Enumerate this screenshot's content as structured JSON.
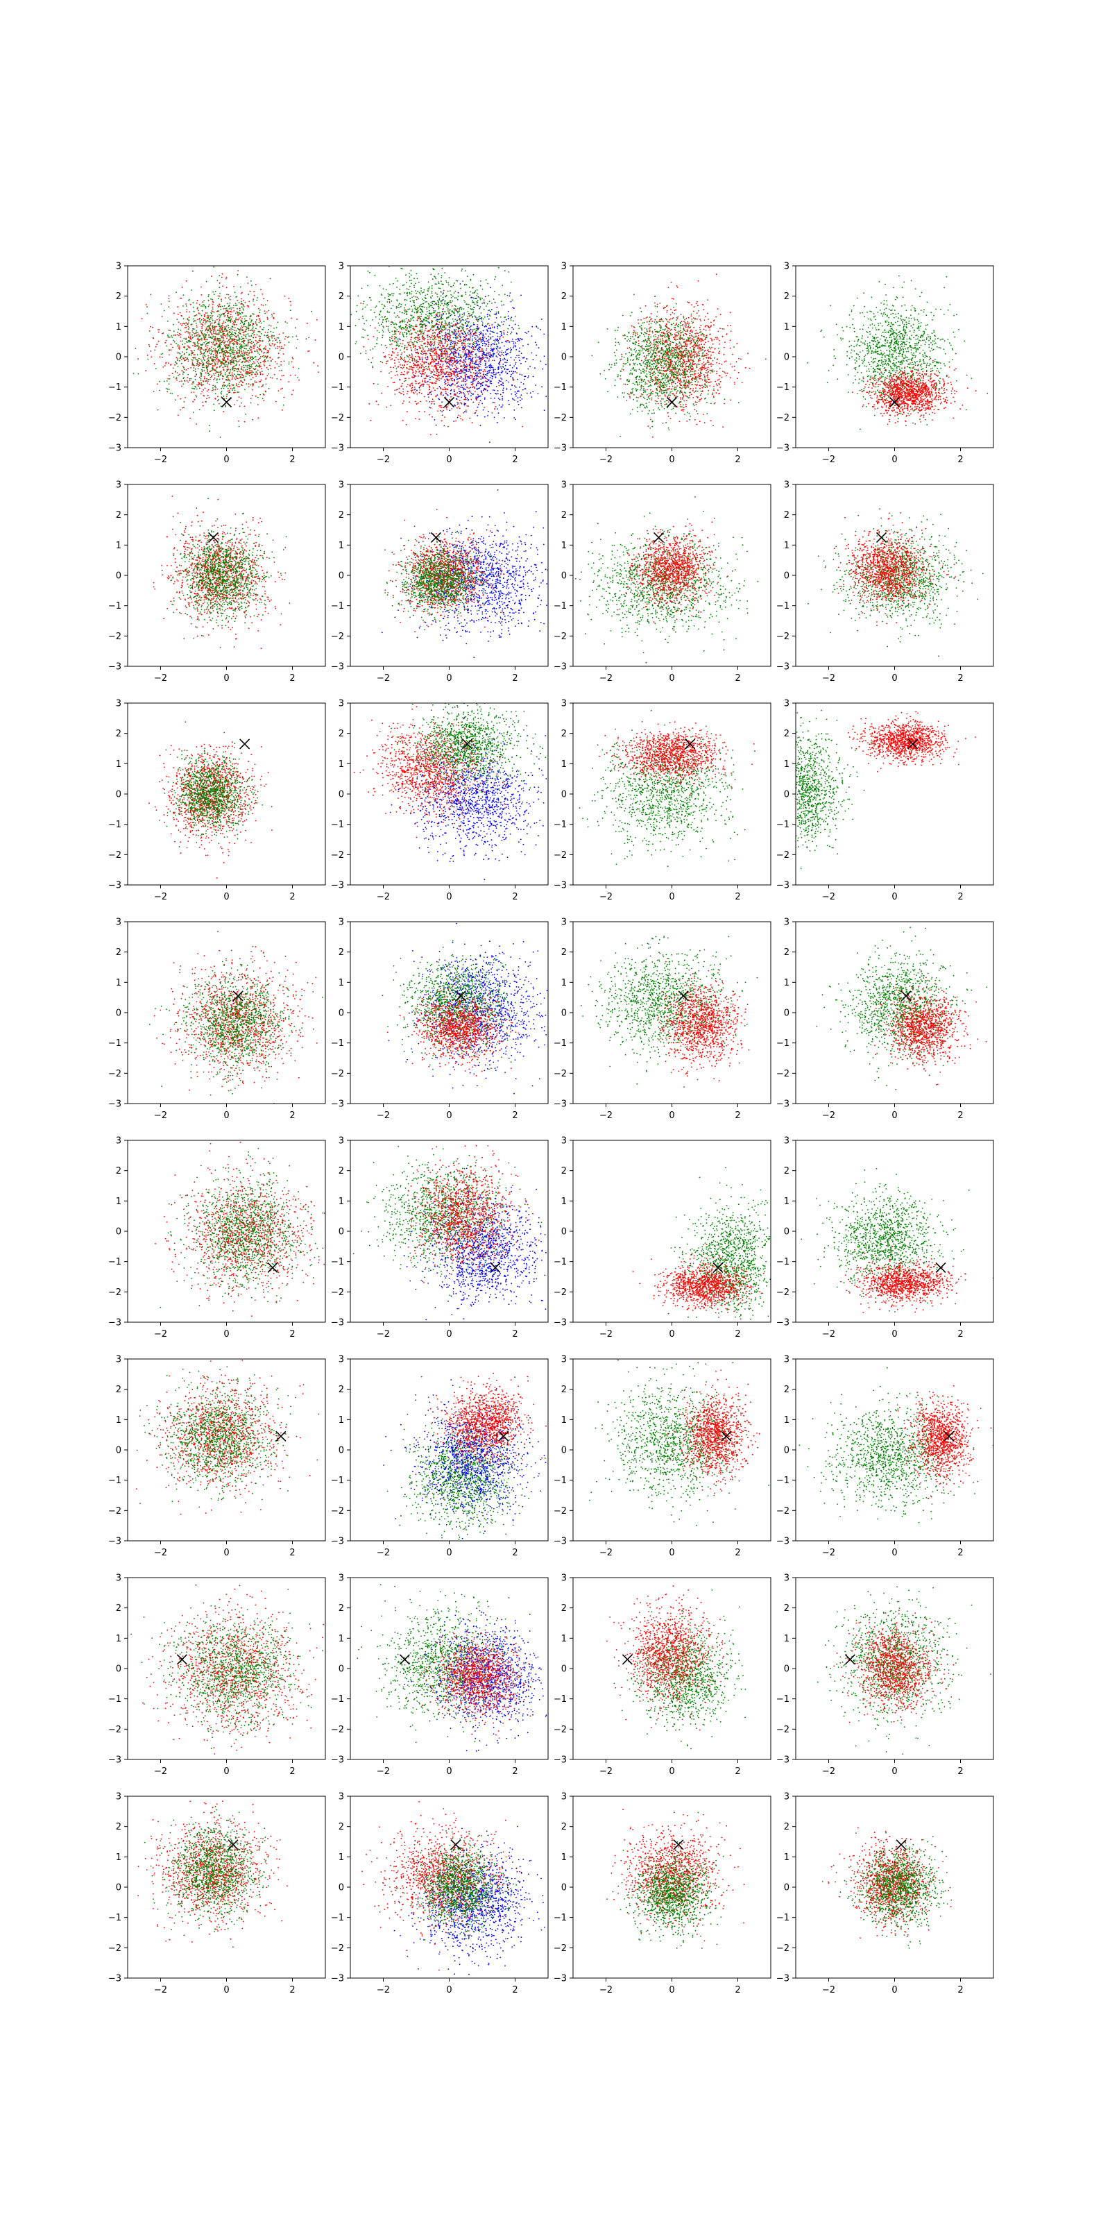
{
  "chart_data": {
    "type": "scatter",
    "grid": false,
    "rows": 8,
    "cols": 4,
    "xlim": [
      -3,
      3
    ],
    "ylim": [
      -3,
      3
    ],
    "x_ticks": [
      -2,
      0,
      2
    ],
    "y_ticks": [
      -3,
      -2,
      -1,
      0,
      1,
      2,
      3
    ],
    "x_tick_labels": [
      "−2",
      "0",
      "2"
    ],
    "y_tick_labels": [
      "−3",
      "−2",
      "−1",
      "0",
      "1",
      "2",
      "3"
    ],
    "colors": {
      "red": "#ff0000",
      "green": "#008000",
      "blue": "#0000ff",
      "marker": "#000000"
    },
    "points_per_cloud": 1100,
    "x_markers": [
      [
        0.0,
        -1.5
      ],
      [
        -0.4,
        1.25
      ],
      [
        0.55,
        1.65
      ],
      [
        0.35,
        0.55
      ],
      [
        1.4,
        -1.2
      ],
      [
        1.65,
        0.45
      ],
      [
        -1.35,
        0.3
      ],
      [
        0.2,
        1.4
      ]
    ],
    "panels": [
      [
        {
          "clouds": [
            {
              "color": "red",
              "cx": 0.0,
              "cy": 0.3,
              "sx": 0.95,
              "sy": 0.9
            },
            {
              "color": "green",
              "cx": -0.1,
              "cy": 0.3,
              "sx": 0.85,
              "sy": 0.85
            }
          ]
        },
        {
          "clouds": [
            {
              "color": "green",
              "cx": -0.5,
              "cy": 1.3,
              "sx": 1.0,
              "sy": 0.75
            },
            {
              "color": "blue",
              "cx": 0.9,
              "cy": -0.1,
              "sx": 0.85,
              "sy": 0.8
            },
            {
              "color": "red",
              "cx": -0.3,
              "cy": -0.2,
              "sx": 0.8,
              "sy": 0.8
            }
          ]
        },
        {
          "clouds": [
            {
              "color": "red",
              "cx": 0.3,
              "cy": -0.1,
              "sx": 0.7,
              "sy": 0.8
            },
            {
              "color": "green",
              "cx": -0.3,
              "cy": -0.2,
              "sx": 0.7,
              "sy": 0.75
            }
          ]
        },
        {
          "clouds": [
            {
              "color": "green",
              "cx": 0.0,
              "cy": 0.1,
              "sx": 0.75,
              "sy": 0.85
            },
            {
              "color": "red",
              "cx": 0.4,
              "cy": -1.2,
              "sx": 0.55,
              "sy": 0.35
            }
          ]
        }
      ],
      [
        {
          "clouds": [
            {
              "color": "red",
              "cx": -0.2,
              "cy": 0.0,
              "sx": 0.7,
              "sy": 0.75
            },
            {
              "color": "green",
              "cx": -0.15,
              "cy": 0.0,
              "sx": 0.6,
              "sy": 0.65
            }
          ]
        },
        {
          "clouds": [
            {
              "color": "blue",
              "cx": 1.0,
              "cy": -0.2,
              "sx": 0.9,
              "sy": 0.8
            },
            {
              "color": "red",
              "cx": -0.2,
              "cy": 0.0,
              "sx": 0.6,
              "sy": 0.6
            },
            {
              "color": "green",
              "cx": -0.3,
              "cy": -0.2,
              "sx": 0.55,
              "sy": 0.5
            }
          ]
        },
        {
          "clouds": [
            {
              "color": "green",
              "cx": -0.3,
              "cy": -0.3,
              "sx": 1.0,
              "sy": 0.75
            },
            {
              "color": "red",
              "cx": 0.0,
              "cy": 0.2,
              "sx": 0.55,
              "sy": 0.55
            }
          ]
        },
        {
          "clouds": [
            {
              "color": "green",
              "cx": 0.2,
              "cy": -0.1,
              "sx": 0.8,
              "sy": 0.7
            },
            {
              "color": "red",
              "cx": -0.2,
              "cy": 0.2,
              "sx": 0.55,
              "sy": 0.55
            }
          ]
        }
      ],
      [
        {
          "clouds": [
            {
              "color": "red",
              "cx": -0.5,
              "cy": 0.0,
              "sx": 0.6,
              "sy": 0.7
            },
            {
              "color": "green",
              "cx": -0.5,
              "cy": 0.0,
              "sx": 0.5,
              "sy": 0.55
            }
          ]
        },
        {
          "clouds": [
            {
              "color": "blue",
              "cx": 0.8,
              "cy": -0.2,
              "sx": 0.85,
              "sy": 0.8
            },
            {
              "color": "red",
              "cx": -0.6,
              "cy": 0.8,
              "sx": 0.75,
              "sy": 0.7
            },
            {
              "color": "green",
              "cx": 0.5,
              "cy": 1.6,
              "sx": 0.75,
              "sy": 0.6
            }
          ]
        },
        {
          "clouds": [
            {
              "color": "green",
              "cx": -0.2,
              "cy": 0.1,
              "sx": 0.95,
              "sy": 0.85
            },
            {
              "color": "red",
              "cx": 0.0,
              "cy": 1.3,
              "sx": 0.7,
              "sy": 0.4
            }
          ]
        },
        {
          "clouds": [
            {
              "color": "green",
              "cx": -2.7,
              "cy": 0.1,
              "sx": 0.55,
              "sy": 0.9
            },
            {
              "color": "red",
              "cx": 0.3,
              "cy": 1.75,
              "sx": 0.6,
              "sy": 0.3
            }
          ]
        }
      ],
      [
        {
          "clouds": [
            {
              "color": "red",
              "cx": 0.3,
              "cy": -0.3,
              "sx": 0.85,
              "sy": 0.85
            },
            {
              "color": "green",
              "cx": 0.3,
              "cy": -0.3,
              "sx": 0.75,
              "sy": 0.75
            }
          ]
        },
        {
          "clouds": [
            {
              "color": "blue",
              "cx": 1.0,
              "cy": 0.1,
              "sx": 0.85,
              "sy": 0.85
            },
            {
              "color": "green",
              "cx": 0.2,
              "cy": 0.3,
              "sx": 0.7,
              "sy": 0.7
            },
            {
              "color": "red",
              "cx": 0.3,
              "cy": -0.5,
              "sx": 0.6,
              "sy": 0.5
            }
          ]
        },
        {
          "clouds": [
            {
              "color": "green",
              "cx": -0.3,
              "cy": 0.4,
              "sx": 0.9,
              "sy": 0.8
            },
            {
              "color": "red",
              "cx": 0.9,
              "cy": -0.4,
              "sx": 0.55,
              "sy": 0.6
            }
          ]
        },
        {
          "clouds": [
            {
              "color": "green",
              "cx": 0.1,
              "cy": 0.2,
              "sx": 0.75,
              "sy": 0.8
            },
            {
              "color": "red",
              "cx": 0.9,
              "cy": -0.5,
              "sx": 0.5,
              "sy": 0.55
            }
          ]
        }
      ],
      [
        {
          "clouds": [
            {
              "color": "red",
              "cx": 0.6,
              "cy": -0.1,
              "sx": 0.9,
              "sy": 0.9
            },
            {
              "color": "green",
              "cx": 0.6,
              "cy": 0.0,
              "sx": 0.8,
              "sy": 0.85
            }
          ]
        },
        {
          "clouds": [
            {
              "color": "green",
              "cx": -0.2,
              "cy": 0.6,
              "sx": 0.9,
              "sy": 0.8
            },
            {
              "color": "blue",
              "cx": 1.1,
              "cy": -0.7,
              "sx": 0.8,
              "sy": 0.85
            },
            {
              "color": "red",
              "cx": 0.5,
              "cy": 0.6,
              "sx": 0.65,
              "sy": 0.75
            }
          ]
        },
        {
          "clouds": [
            {
              "color": "green",
              "cx": 1.8,
              "cy": -1.0,
              "sx": 0.6,
              "sy": 0.85
            },
            {
              "color": "red",
              "cx": 1.0,
              "cy": -1.8,
              "sx": 0.6,
              "sy": 0.35
            }
          ]
        },
        {
          "clouds": [
            {
              "color": "green",
              "cx": -0.3,
              "cy": -0.3,
              "sx": 0.75,
              "sy": 0.75
            },
            {
              "color": "red",
              "cx": 0.3,
              "cy": -1.7,
              "sx": 0.65,
              "sy": 0.3
            }
          ]
        }
      ],
      [
        {
          "clouds": [
            {
              "color": "red",
              "cx": -0.2,
              "cy": 0.5,
              "sx": 0.85,
              "sy": 0.85
            },
            {
              "color": "green",
              "cx": -0.3,
              "cy": 0.4,
              "sx": 0.8,
              "sy": 0.8
            }
          ]
        },
        {
          "clouds": [
            {
              "color": "green",
              "cx": 0.4,
              "cy": -0.9,
              "sx": 0.7,
              "sy": 0.85
            },
            {
              "color": "blue",
              "cx": 0.7,
              "cy": -0.3,
              "sx": 0.8,
              "sy": 0.8
            },
            {
              "color": "red",
              "cx": 1.1,
              "cy": 0.9,
              "sx": 0.55,
              "sy": 0.55
            }
          ]
        },
        {
          "clouds": [
            {
              "color": "green",
              "cx": 0.0,
              "cy": 0.3,
              "sx": 0.85,
              "sy": 0.9
            },
            {
              "color": "red",
              "cx": 1.3,
              "cy": 0.5,
              "sx": 0.45,
              "sy": 0.65
            }
          ]
        },
        {
          "clouds": [
            {
              "color": "green",
              "cx": -0.2,
              "cy": -0.2,
              "sx": 0.85,
              "sy": 0.85
            },
            {
              "color": "red",
              "cx": 1.4,
              "cy": 0.4,
              "sx": 0.4,
              "sy": 0.6
            }
          ]
        }
      ],
      [
        {
          "clouds": [
            {
              "color": "red",
              "cx": 0.2,
              "cy": -0.1,
              "sx": 1.0,
              "sy": 0.95
            },
            {
              "color": "green",
              "cx": 0.3,
              "cy": -0.1,
              "sx": 0.9,
              "sy": 0.85
            }
          ]
        },
        {
          "clouds": [
            {
              "color": "green",
              "cx": -0.2,
              "cy": 0.2,
              "sx": 0.85,
              "sy": 0.85
            },
            {
              "color": "blue",
              "cx": 1.2,
              "cy": -0.3,
              "sx": 0.75,
              "sy": 0.8
            },
            {
              "color": "red",
              "cx": 0.9,
              "cy": -0.3,
              "sx": 0.6,
              "sy": 0.6
            }
          ]
        },
        {
          "clouds": [
            {
              "color": "green",
              "cx": 0.4,
              "cy": -0.3,
              "sx": 0.7,
              "sy": 0.75
            },
            {
              "color": "red",
              "cx": -0.1,
              "cy": 0.5,
              "sx": 0.6,
              "sy": 0.75
            }
          ]
        },
        {
          "clouds": [
            {
              "color": "green",
              "cx": 0.0,
              "cy": 0.2,
              "sx": 0.8,
              "sy": 0.9
            },
            {
              "color": "red",
              "cx": 0.0,
              "cy": 0.0,
              "sx": 0.55,
              "sy": 0.65
            }
          ]
        }
      ],
      [
        {
          "clouds": [
            {
              "color": "red",
              "cx": -0.4,
              "cy": 0.5,
              "sx": 0.8,
              "sy": 0.8
            },
            {
              "color": "green",
              "cx": -0.4,
              "cy": 0.5,
              "sx": 0.65,
              "sy": 0.7
            }
          ]
        },
        {
          "clouds": [
            {
              "color": "blue",
              "cx": 0.8,
              "cy": -0.5,
              "sx": 0.8,
              "sy": 0.8
            },
            {
              "color": "red",
              "cx": -0.2,
              "cy": 0.4,
              "sx": 0.8,
              "sy": 0.75
            },
            {
              "color": "green",
              "cx": 0.3,
              "cy": 0.0,
              "sx": 0.55,
              "sy": 0.6
            }
          ]
        },
        {
          "clouds": [
            {
              "color": "red",
              "cx": 0.0,
              "cy": 0.4,
              "sx": 0.7,
              "sy": 0.7
            },
            {
              "color": "green",
              "cx": 0.0,
              "cy": -0.2,
              "sx": 0.55,
              "sy": 0.6
            }
          ]
        },
        {
          "clouds": [
            {
              "color": "red",
              "cx": -0.1,
              "cy": 0.1,
              "sx": 0.55,
              "sy": 0.6
            },
            {
              "color": "green",
              "cx": 0.1,
              "cy": 0.0,
              "sx": 0.6,
              "sy": 0.6
            }
          ]
        }
      ]
    ]
  }
}
